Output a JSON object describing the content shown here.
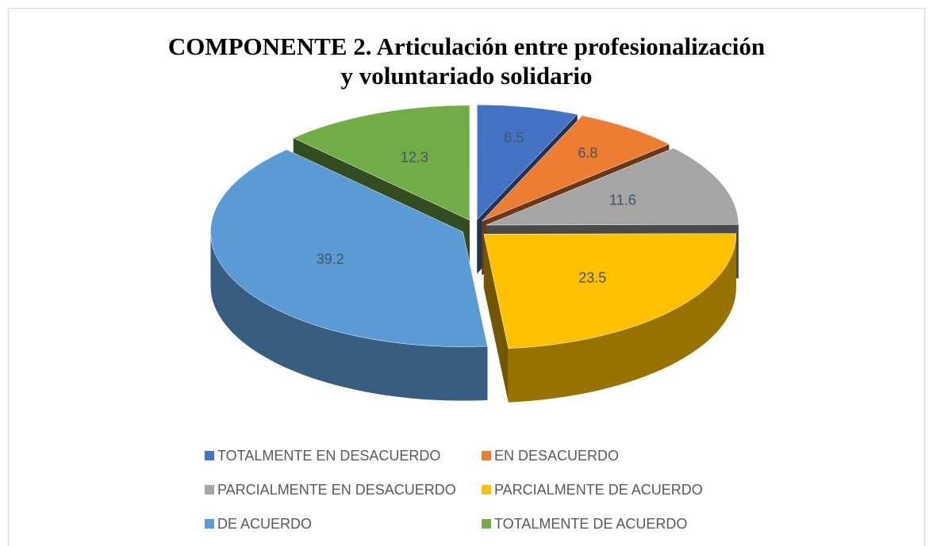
{
  "chart_data": {
    "type": "pie3d",
    "title": "COMPONENTE 2. Articulación entre profesionalización y voluntariado solidario",
    "categories": [
      "TOTALMENTE EN DESACUERDO",
      "EN DESACUERDO",
      "PARCIALMENTE EN DESACUERDO",
      "PARCIALMENTE DE ACUERDO",
      "DE ACUERDO",
      "TOTALMENTE DE ACUERDO"
    ],
    "values": [
      6.5,
      6.8,
      11.6,
      23.5,
      39.2,
      12.3
    ],
    "colors": [
      "#4472c4",
      "#ed7d31",
      "#a5a5a5",
      "#ffc000",
      "#5b9bd5",
      "#70ad47"
    ],
    "legend": "bottom"
  }
}
